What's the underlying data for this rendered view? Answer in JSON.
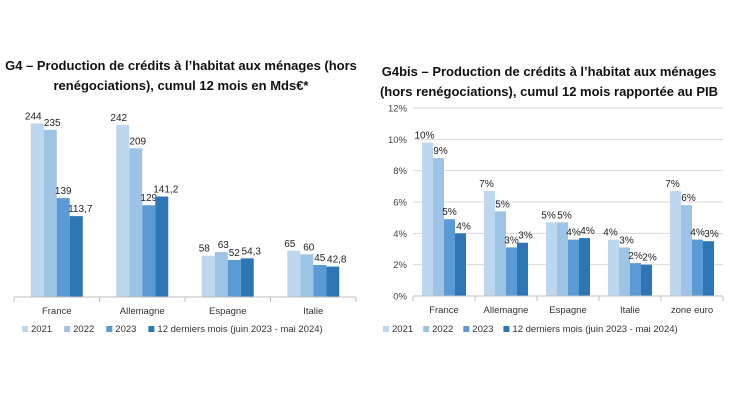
{
  "chart_data": [
    {
      "type": "bar",
      "title": "G4 – Production de crédits à l’habitat aux ménages (hors renégociations), cumul 12 mois en Mds€*",
      "categories": [
        "France",
        "Allemagne",
        "Espagne",
        "Italie"
      ],
      "series": [
        {
          "name": "2021",
          "values": [
            244,
            242,
            58,
            65
          ],
          "labels": [
            "244",
            "242",
            "58",
            "65"
          ]
        },
        {
          "name": "2022",
          "values": [
            235,
            209,
            63,
            60
          ],
          "labels": [
            "235",
            "209",
            "63",
            "60"
          ]
        },
        {
          "name": "2023",
          "values": [
            139,
            129,
            52,
            45
          ],
          "labels": [
            "139",
            "129",
            "52",
            "45"
          ]
        },
        {
          "name": "12 derniers mois (juin 2023 - mai 2024)",
          "values": [
            113.7,
            141.2,
            54.3,
            42.8
          ],
          "labels": [
            "113,7",
            "141,2",
            "54,3",
            "42,8"
          ]
        }
      ],
      "colors": [
        "#bdd7ee",
        "#9dc3e6",
        "#5b9bd5",
        "#2e75b6"
      ],
      "ylim": [
        0,
        260
      ],
      "grid": false,
      "legend": "bottom"
    },
    {
      "type": "bar",
      "title": "G4bis – Production de crédits à l’habitat aux ménages (hors renégociations), cumul 12 mois rapportée au PIB",
      "categories": [
        "France",
        "Allemagne",
        "Espagne",
        "Italie",
        "zone euro"
      ],
      "yticks": [
        "0%",
        "2%",
        "4%",
        "6%",
        "8%",
        "10%",
        "12%"
      ],
      "ylim": [
        0,
        12
      ],
      "series": [
        {
          "name": "2021",
          "values": [
            9.8,
            6.7,
            4.7,
            3.6,
            6.7
          ],
          "labels": [
            "10%",
            "7%",
            "5%",
            "4%",
            "7%"
          ]
        },
        {
          "name": "2022",
          "values": [
            8.8,
            5.4,
            4.7,
            3.1,
            5.8
          ],
          "labels": [
            "9%",
            "5%",
            "5%",
            "3%",
            "6%"
          ]
        },
        {
          "name": "2023",
          "values": [
            4.9,
            3.1,
            3.6,
            2.1,
            3.6
          ],
          "labels": [
            "5%",
            "3%",
            "4%",
            "2%",
            "4%"
          ]
        },
        {
          "name": "12 derniers mois (juin 2023 - mai 2024)",
          "values": [
            4.0,
            3.4,
            3.7,
            2.0,
            3.5
          ],
          "labels": [
            "4%",
            "3%",
            "4%",
            "2%",
            "3%"
          ]
        }
      ],
      "colors": [
        "#bdd7ee",
        "#9dc3e6",
        "#5b9bd5",
        "#2e75b6"
      ],
      "grid": true,
      "legend": "bottom"
    }
  ]
}
